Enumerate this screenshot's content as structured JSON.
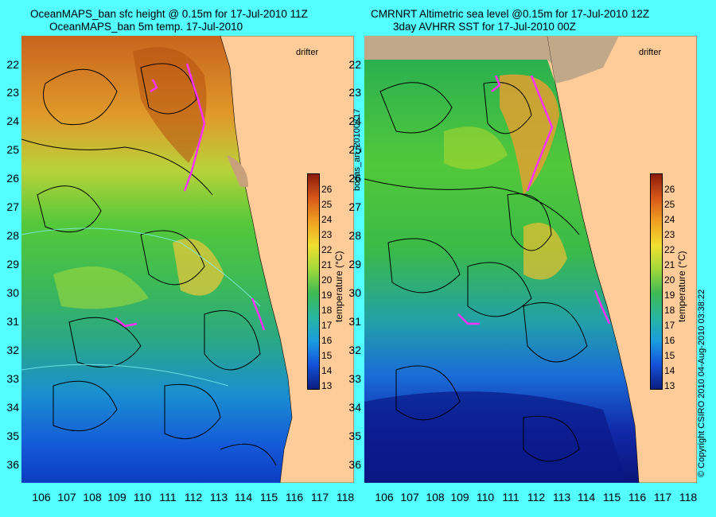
{
  "left_panel": {
    "title_line1": "OceanMAPS_ban sfc height @ 0.15m for 17-Jul-2010 11Z",
    "title_line2": "OceanMAPS_ban 5m temp. 17-Jul-2010",
    "drifter_label": "drifter",
    "colorbar_label": "temperature (°C)"
  },
  "right_panel": {
    "title_line1": "CMRNRT Altimetric sea level  @0.15m  for 17-Jul-2010 12Z",
    "title_line2": "3day AVHRR SST for 17-Jul-2010 00Z",
    "drifter_label": "drifter",
    "colorbar_label": "temperature (°C)"
  },
  "x_ticks": [
    "106",
    "107",
    "108",
    "109",
    "110",
    "111",
    "112",
    "113",
    "114",
    "115",
    "116",
    "117",
    "118"
  ],
  "y_ticks": [
    "22",
    "23",
    "24",
    "25",
    "26",
    "27",
    "28",
    "29",
    "30",
    "31",
    "32",
    "33",
    "34",
    "35",
    "36"
  ],
  "colorbar_ticks": [
    "26",
    "25",
    "24",
    "23",
    "22",
    "21",
    "20",
    "19",
    "18",
    "17",
    "16",
    "15",
    "14",
    "13"
  ],
  "side_text_left": "bodas_an_20100717",
  "side_text_right": "© Copyright CSIRO 2010   04-Aug-2010 03:38:22",
  "colors": {
    "background": "#54ffff",
    "land": "#ffcc99",
    "drifter": "#ff33ff",
    "contour": "#000000"
  }
}
